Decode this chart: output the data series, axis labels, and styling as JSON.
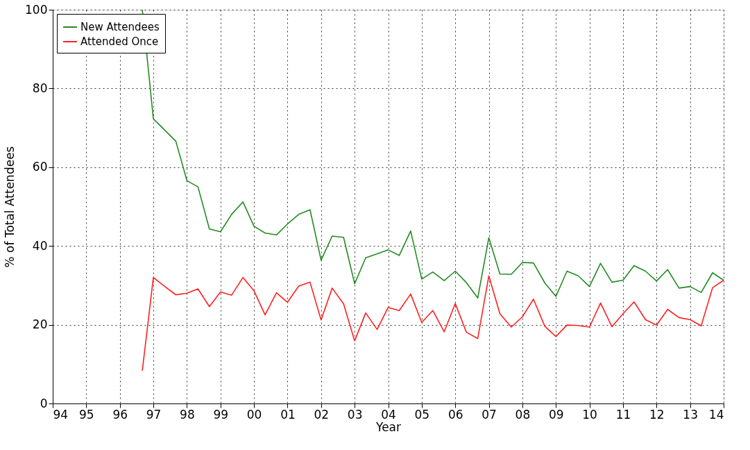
{
  "chart_data": {
    "type": "line",
    "xlabel": "Year",
    "ylabel": "% of Total Attendees",
    "x": [
      1996.67,
      1997,
      1997.33,
      1997.67,
      1998,
      1998.33,
      1998.67,
      1999,
      1999.33,
      1999.67,
      2000,
      2000.33,
      2000.67,
      2001,
      2001.33,
      2001.67,
      2002,
      2002.33,
      2002.67,
      2003,
      2003.33,
      2003.67,
      2004,
      2004.33,
      2004.67,
      2005,
      2005.33,
      2005.67,
      2006,
      2006.33,
      2006.67,
      2007,
      2007.33,
      2007.67,
      2008,
      2008.33,
      2008.67,
      2009,
      2009.33,
      2009.67,
      2010,
      2010.33,
      2010.67,
      2011,
      2011.33,
      2011.67,
      2012,
      2012.33,
      2012.67,
      2013,
      2013.33,
      2013.67,
      2014
    ],
    "series": [
      {
        "name": "New Attendees",
        "color": "#228b22",
        "values": [
          100,
          72.3,
          69.5,
          66.6,
          56.6,
          55,
          44.3,
          43.6,
          48,
          51.2,
          45,
          43.3,
          42.8,
          45.6,
          48,
          49.2,
          36.4,
          42.5,
          42.2,
          30.4,
          37,
          38,
          39,
          37.6,
          43.8,
          31.6,
          33.4,
          31.2,
          33.6,
          30.7,
          26.8,
          42.1,
          32.9,
          32.8,
          35.8,
          35.7,
          30.6,
          27.2,
          33.6,
          32.4,
          29.7,
          35.6,
          30.8,
          31.3,
          35,
          33.6,
          31.1,
          34,
          29.3,
          29.7,
          28.2,
          33.2,
          31.3
        ]
      },
      {
        "name": "Attended Once",
        "color": "#ff2020",
        "values": [
          8.3,
          32,
          29.8,
          27.6,
          28,
          29.1,
          24.6,
          28.3,
          27.5,
          32,
          28.6,
          22.5,
          28.1,
          25.7,
          29.8,
          30.8,
          21.2,
          29.3,
          25.3,
          15.9,
          23,
          18.8,
          24.4,
          23.6,
          27.8,
          20.6,
          23.6,
          18.2,
          25.4,
          18.1,
          16.5,
          32.4,
          22.8,
          19.4,
          22,
          26.5,
          19.6,
          17,
          19.9,
          19.8,
          19.4,
          25.5,
          19.5,
          22.8,
          25.8,
          21.3,
          19.9,
          23.9,
          21.8,
          21.3,
          19.7,
          29.4,
          31.3
        ]
      }
    ],
    "xlim": [
      1994,
      2014
    ],
    "xticks": [
      {
        "value": 1994,
        "label": "94"
      },
      {
        "value": 1995,
        "label": "95"
      },
      {
        "value": 1996,
        "label": "96"
      },
      {
        "value": 1997,
        "label": "97"
      },
      {
        "value": 1998,
        "label": "98"
      },
      {
        "value": 1999,
        "label": "99"
      },
      {
        "value": 2000,
        "label": "00"
      },
      {
        "value": 2001,
        "label": "01"
      },
      {
        "value": 2002,
        "label": "02"
      },
      {
        "value": 2003,
        "label": "03"
      },
      {
        "value": 2004,
        "label": "04"
      },
      {
        "value": 2005,
        "label": "05"
      },
      {
        "value": 2006,
        "label": "06"
      },
      {
        "value": 2007,
        "label": "07"
      },
      {
        "value": 2008,
        "label": "08"
      },
      {
        "value": 2009,
        "label": "09"
      },
      {
        "value": 2010,
        "label": "10"
      },
      {
        "value": 2011,
        "label": "11"
      },
      {
        "value": 2012,
        "label": "12"
      },
      {
        "value": 2013,
        "label": "13"
      },
      {
        "value": 2014,
        "label": "14"
      }
    ],
    "ylim": [
      0,
      100
    ],
    "yticks": [
      0,
      20,
      40,
      60,
      80,
      100
    ],
    "grid": true,
    "legend": "top left",
    "line_style": "solid",
    "marker": "none"
  }
}
